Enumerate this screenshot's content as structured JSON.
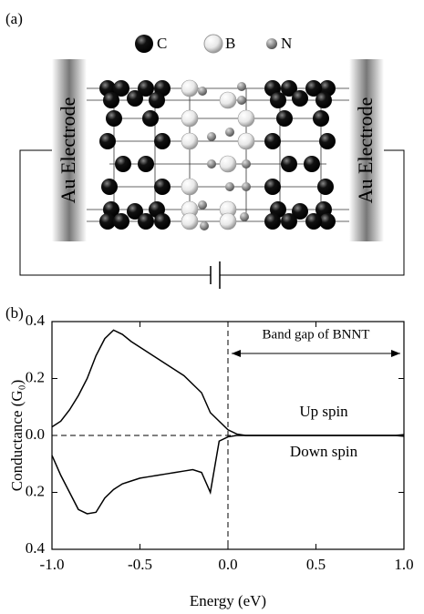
{
  "panel_a": {
    "label": "(a)",
    "legend": [
      "C",
      "B",
      "N"
    ],
    "electrode_left": "Au Electrode",
    "electrode_right": "Au Electrode"
  },
  "chart_data": {
    "type": "line",
    "panel_label": "(b)",
    "xlabel": "Energy (eV)",
    "ylabel": "Conductance (G₀)",
    "annotation": "Band gap of BNNT",
    "x": [
      -1.0,
      -0.95,
      -0.9,
      -0.85,
      -0.8,
      -0.75,
      -0.7,
      -0.65,
      -0.6,
      -0.55,
      -0.5,
      -0.45,
      -0.4,
      -0.35,
      -0.3,
      -0.25,
      -0.2,
      -0.15,
      -0.1,
      -0.05,
      0.0,
      0.05,
      0.1,
      0.15,
      0.2,
      0.25,
      0.3,
      0.35,
      0.4,
      0.45,
      0.5,
      0.55,
      0.6,
      0.65,
      0.7,
      0.75,
      0.8,
      0.85,
      0.9,
      0.95,
      1.0
    ],
    "series": [
      {
        "name": "Up spin",
        "color": "#000000",
        "values": [
          0.03,
          0.05,
          0.09,
          0.14,
          0.2,
          0.28,
          0.34,
          0.37,
          0.355,
          0.33,
          0.31,
          0.29,
          0.27,
          0.25,
          0.23,
          0.21,
          0.18,
          0.15,
          0.08,
          0.05,
          0.02,
          0.005,
          0,
          0,
          0,
          0,
          0,
          0,
          0,
          0,
          0,
          0,
          0,
          0,
          0,
          0,
          0,
          0,
          0,
          0,
          0.003
        ]
      },
      {
        "name": "Down spin",
        "color": "#000000",
        "values": [
          -0.07,
          -0.14,
          -0.2,
          -0.26,
          -0.275,
          -0.27,
          -0.22,
          -0.19,
          -0.17,
          -0.16,
          -0.15,
          -0.145,
          -0.14,
          -0.135,
          -0.13,
          -0.125,
          -0.12,
          -0.13,
          -0.2,
          -0.02,
          -0.005,
          0,
          0,
          0,
          0,
          0,
          0,
          0,
          0,
          0,
          0,
          0,
          0,
          0,
          0,
          0,
          0,
          0,
          0,
          0,
          -0.003
        ]
      }
    ],
    "xlim": [
      -1.0,
      1.0
    ],
    "xticks": [
      {
        "value": -1.0,
        "label": "-1.0"
      },
      {
        "value": -0.5,
        "label": "-0.5"
      },
      {
        "value": 0,
        "label": "0.0"
      },
      {
        "value": 0.5,
        "label": "0.5"
      },
      {
        "value": 1.0,
        "label": "1.0"
      }
    ],
    "ylim": [
      -0.4,
      0.4
    ],
    "yticks": [
      0.4,
      0.2,
      {
        "value": 0,
        "label": "0.0"
      },
      {
        "value": -0.2,
        "label": "0.2"
      },
      {
        "value": -0.4,
        "label": "0.4"
      }
    ]
  }
}
